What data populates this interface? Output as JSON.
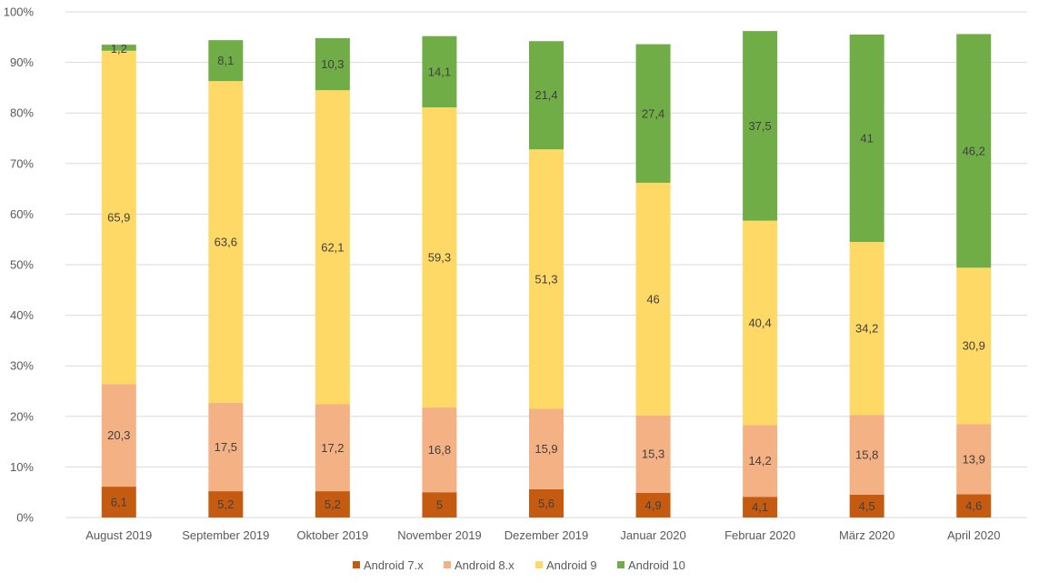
{
  "chart_data": {
    "type": "bar",
    "stacked": true,
    "percent_stacked": true,
    "title": "",
    "xlabel": "",
    "ylabel": "",
    "ylim": [
      0,
      100
    ],
    "yticks": [
      "0%",
      "10%",
      "20%",
      "30%",
      "40%",
      "50%",
      "60%",
      "70%",
      "80%",
      "90%",
      "100%"
    ],
    "grid": true,
    "legend_position": "bottom",
    "categories": [
      "August 2019",
      "September 2019",
      "Oktober 2019",
      "November 2019",
      "Dezember 2019",
      "Januar 2020",
      "Februar 2020",
      "März 2020",
      "April 2020"
    ],
    "series": [
      {
        "name": "Android 7.x",
        "color": "#C55A11",
        "values": [
          6.1,
          5.2,
          5.2,
          5,
          5.6,
          4.9,
          4.1,
          4.5,
          4.6
        ],
        "labels": [
          "6,1",
          "5,2",
          "5,2",
          "5",
          "5,6",
          "4,9",
          "4,1",
          "4,5",
          "4,6"
        ]
      },
      {
        "name": "Android 8.x",
        "color": "#F4B183",
        "values": [
          20.3,
          17.5,
          17.2,
          16.8,
          15.9,
          15.3,
          14.2,
          15.8,
          13.9
        ],
        "labels": [
          "20,3",
          "17,5",
          "17,2",
          "16,8",
          "15,9",
          "15,3",
          "14,2",
          "15,8",
          "13,9"
        ]
      },
      {
        "name": "Android 9",
        "color": "#FFD966",
        "values": [
          65.9,
          63.6,
          62.1,
          59.3,
          51.3,
          46,
          40.4,
          34.2,
          30.9
        ],
        "labels": [
          "65,9",
          "63,6",
          "62,1",
          "59,3",
          "51,3",
          "46",
          "40,4",
          "34,2",
          "30,9"
        ]
      },
      {
        "name": "Android 10",
        "color": "#70AD47",
        "values": [
          1.2,
          8.1,
          10.3,
          14.1,
          21.4,
          27.4,
          37.5,
          41,
          46.2
        ],
        "labels": [
          "1,2",
          "8,1",
          "10,3",
          "14,1",
          "21,4",
          "27,4",
          "37,5",
          "41",
          "46,2"
        ]
      }
    ]
  }
}
